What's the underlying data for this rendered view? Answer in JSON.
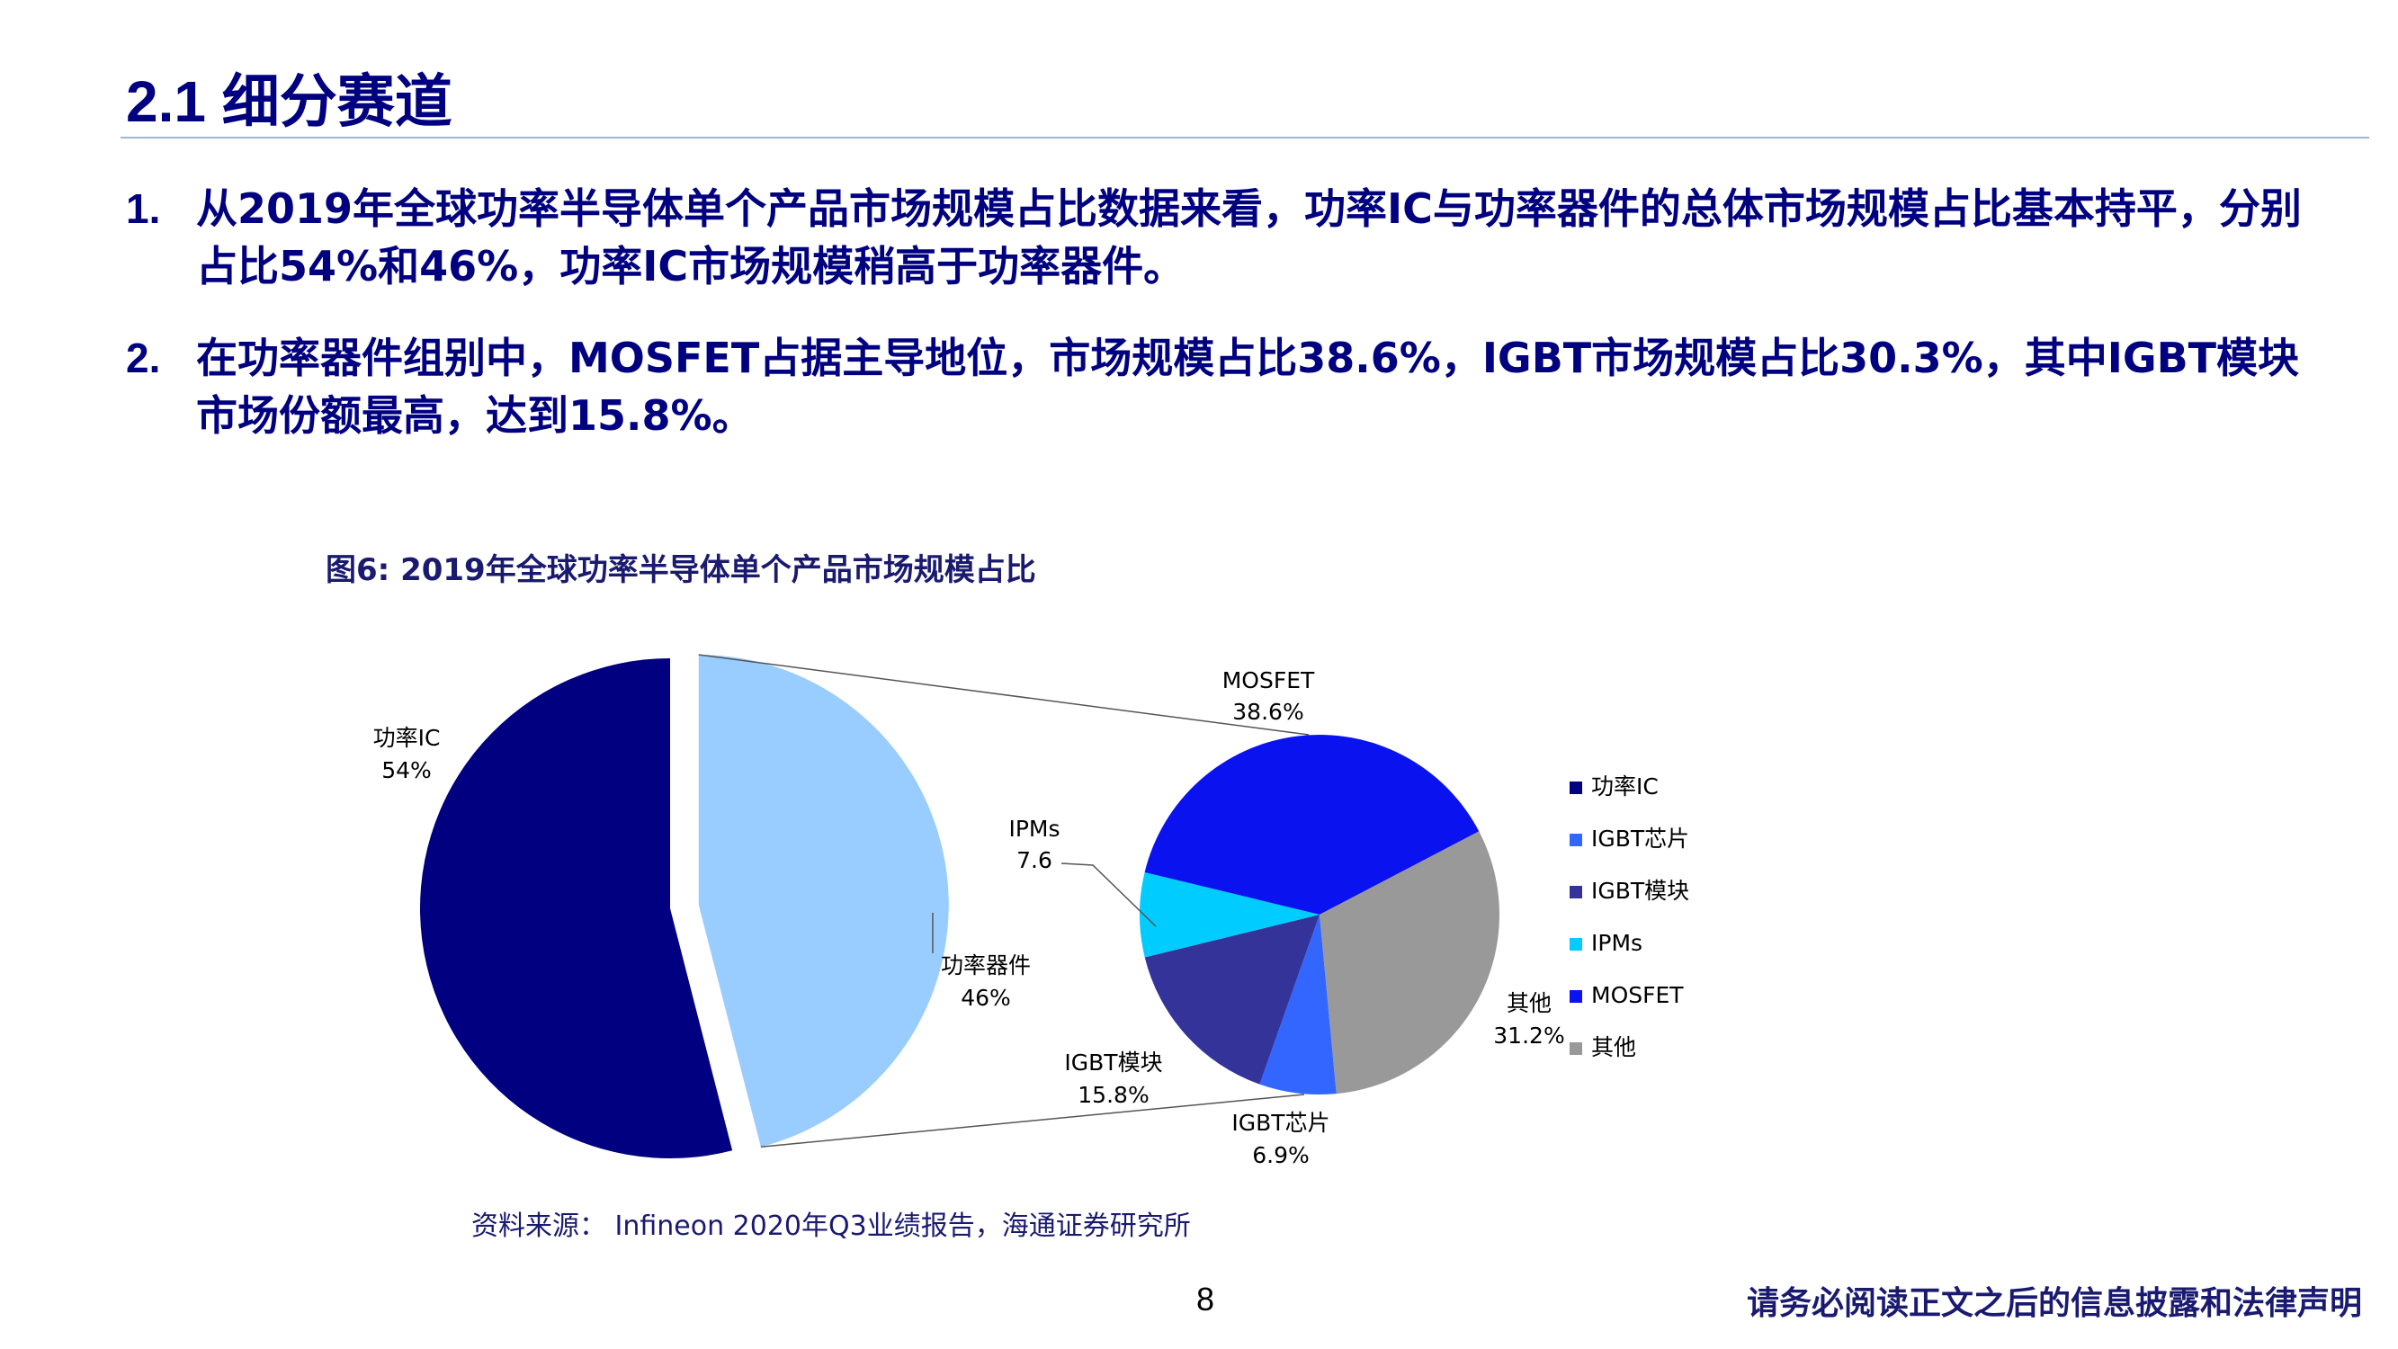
{
  "page": {
    "title": "2.1 细分赛道",
    "bullets": [
      {
        "num": "1.",
        "text": "从2019年全球功率半导体单个产品市场规模占比数据来看，功率IC与功率器件的总体市场规模占比基本持平，分别占比54%和46%，功率IC市场规模稍高于功率器件。"
      },
      {
        "num": "2.",
        "text": "在功率器件组别中，MOSFET占据主导地位，市场规模占比38.6%，IGBT市场规模占比30.3%，其中IGBT模块市场份额最高，达到15.8%。"
      }
    ],
    "figure_caption": "图6:  2019年全球功率半导体单个产品市场规模占比",
    "source": "资料来源：   Infineon 2020年Q3业绩报告，海通证券研究所",
    "page_number": "8",
    "disclaimer": "请务必阅读正文之后的信息披露和法律声明"
  },
  "chart_data": [
    {
      "type": "pie",
      "slices": [
        {
          "label": "功率IC",
          "value": 54,
          "value_label": "54%",
          "color": "#000080"
        },
        {
          "label": "功率器件",
          "value": 46,
          "value_label": "46%",
          "color": "#99ccff"
        }
      ]
    },
    {
      "type": "pie",
      "slices": [
        {
          "label": "MOSFET",
          "value": 38.6,
          "value_label": "38.6%",
          "color": "#0a12f0"
        },
        {
          "label": "其他",
          "value": 31.2,
          "value_label": "31.2%",
          "color": "#999999"
        },
        {
          "label": "IGBT芯片",
          "value": 6.9,
          "value_label": "6.9%",
          "color": "#3366ff"
        },
        {
          "label": "IGBT模块",
          "value": 15.8,
          "value_label": "15.8%",
          "color": "#333399"
        },
        {
          "label": "IPMs",
          "value": 7.6,
          "value_label": "7.6",
          "color": "#00ccff"
        }
      ],
      "legend": {
        "position": "right",
        "entries": [
          {
            "label": "功率IC",
            "color": "#000080"
          },
          {
            "label": "IGBT芯片",
            "color": "#3366ff"
          },
          {
            "label": "IGBT模块",
            "color": "#333399"
          },
          {
            "label": "IPMs",
            "color": "#00ccff"
          },
          {
            "label": "MOSFET",
            "color": "#0a12f0"
          },
          {
            "label": "其他",
            "color": "#999999"
          }
        ]
      }
    }
  ]
}
